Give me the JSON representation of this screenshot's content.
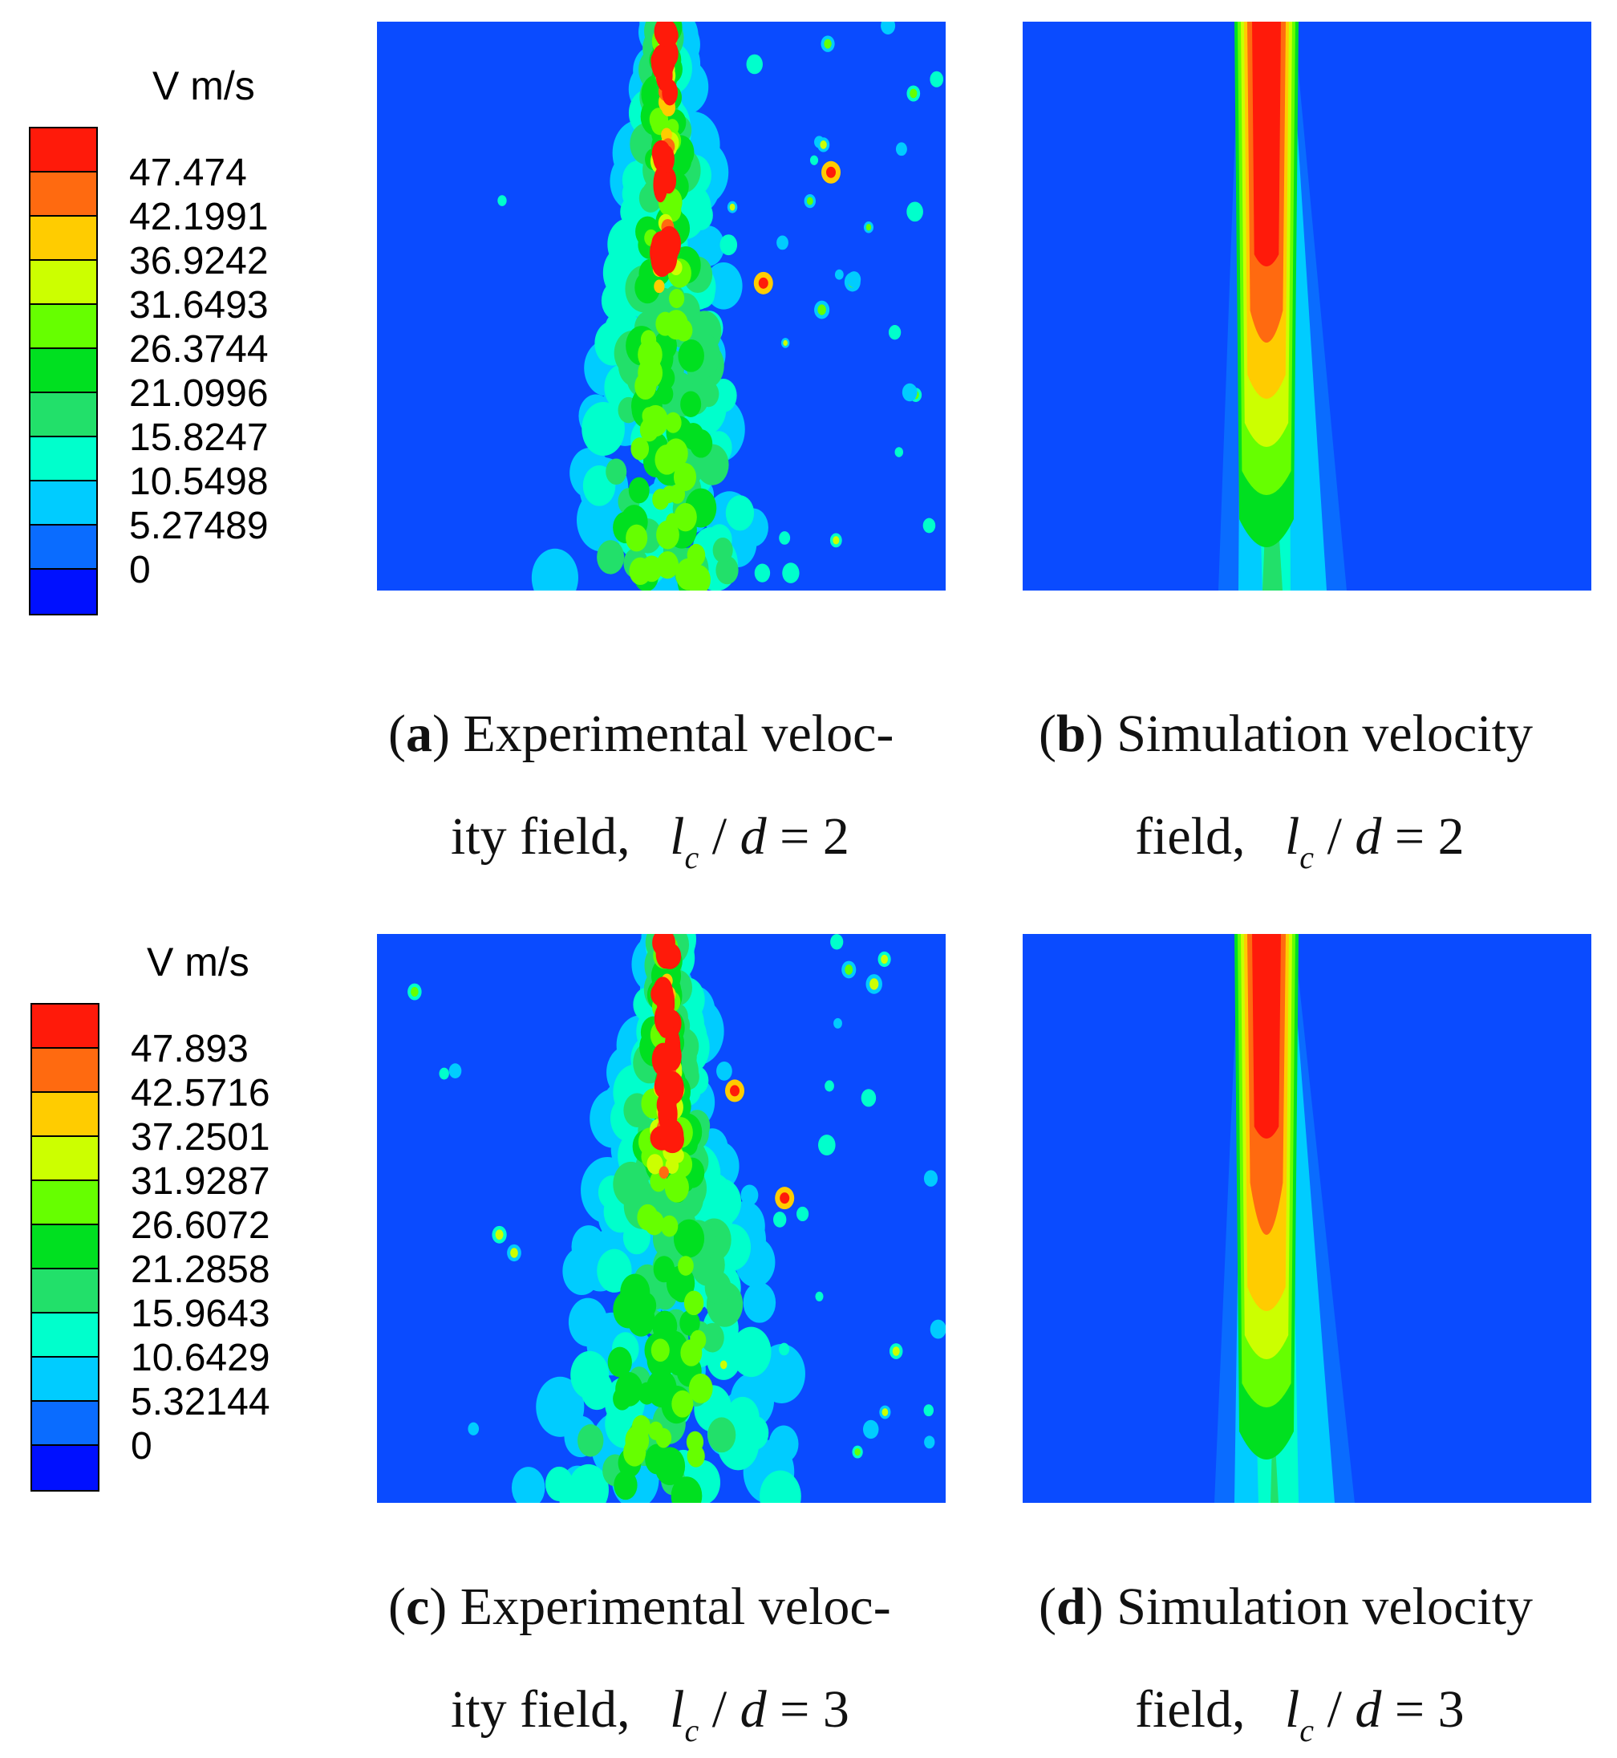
{
  "chart_data": [
    {
      "type": "heatmap",
      "panel": "a",
      "title": "Experimental velocity field",
      "colorbar_title": "V m/s",
      "levels": [
        "47.474",
        "42.1991",
        "36.9242",
        "31.6493",
        "26.3744",
        "21.0996",
        "15.8247",
        "10.5498",
        "5.27489",
        "0"
      ],
      "caption": {
        "label": "a",
        "line1": "Experimental veloc-",
        "line2": "ity field,",
        "ratio": "2"
      }
    },
    {
      "type": "heatmap",
      "panel": "b",
      "title": "Simulation velocity field",
      "caption": {
        "label": "b",
        "line1": "Simulation velocity",
        "line2": "field,",
        "ratio": "2"
      }
    },
    {
      "type": "heatmap",
      "panel": "c",
      "title": "Experimental velocity field",
      "colorbar_title": "V m/s",
      "levels": [
        "47.893",
        "42.5716",
        "37.2501",
        "31.9287",
        "26.6072",
        "21.2858",
        "15.9643",
        "10.6429",
        "5.32144",
        "0"
      ],
      "caption": {
        "label": "c",
        "line1": "Experimental veloc-",
        "line2": "ity field,",
        "ratio": "3"
      }
    },
    {
      "type": "heatmap",
      "panel": "d",
      "title": "Simulation velocity field",
      "caption": {
        "label": "d",
        "line1": "Simulation velocity",
        "line2": "field,",
        "ratio": "3"
      }
    }
  ],
  "colors": {
    "level_colors": [
      "#ff1a0a",
      "#ff6a10",
      "#ffcc00",
      "#ccff00",
      "#66ff00",
      "#00e020",
      "#22e06a",
      "#00ffcc",
      "#00ccff",
      "#0a6cff",
      "#0010ff"
    ],
    "background": "#0a4bff"
  },
  "symbols": {
    "lc_main": "l",
    "lc_sub": "c",
    "slash": "/",
    "d": "d",
    "equals": "="
  }
}
